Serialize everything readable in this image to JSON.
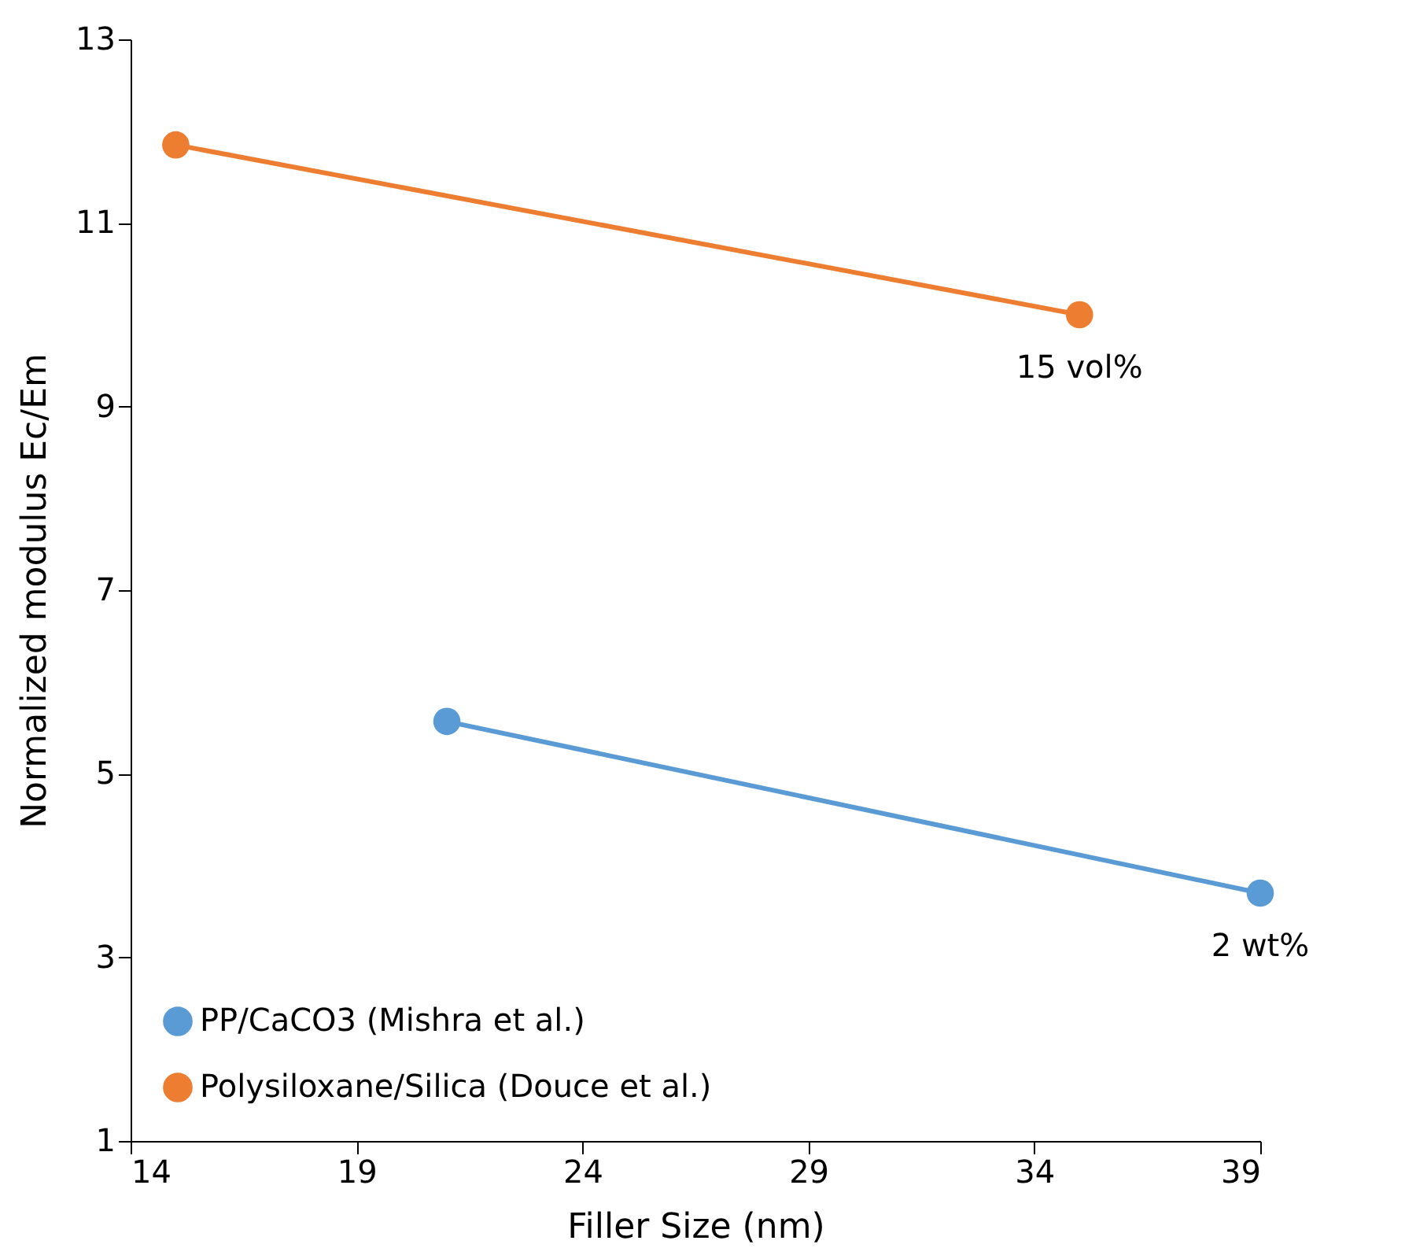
{
  "chart_data": {
    "type": "line",
    "xlabel": "Filler Size (nm)",
    "ylabel": "Normalized modulus Ec/Em",
    "xlim": [
      14,
      39
    ],
    "xticks": [
      14,
      19,
      24,
      29,
      34,
      39
    ],
    "ylim": [
      1,
      13
    ],
    "yticks": [
      1,
      3,
      5,
      7,
      9,
      11,
      13
    ],
    "grid": false,
    "legend": "bottom left",
    "marker": "circle",
    "line_style": "solid",
    "series": [
      {
        "name": "PP/CaCO3 (Mishra et al.)",
        "color": "#5b9bd5",
        "x": [
          21,
          39
        ],
        "values": [
          5.57,
          3.7
        ]
      },
      {
        "name": "Polysiloxane/Silica (Douce et al.)",
        "color": "#ed7d31",
        "x": [
          15,
          35
        ],
        "values": [
          11.85,
          10.0
        ]
      }
    ],
    "annotations": [
      {
        "text": "15 vol%",
        "x": 35,
        "y": 10.0
      },
      {
        "text": "2 wt%",
        "x": 39,
        "y": 3.7
      }
    ]
  }
}
